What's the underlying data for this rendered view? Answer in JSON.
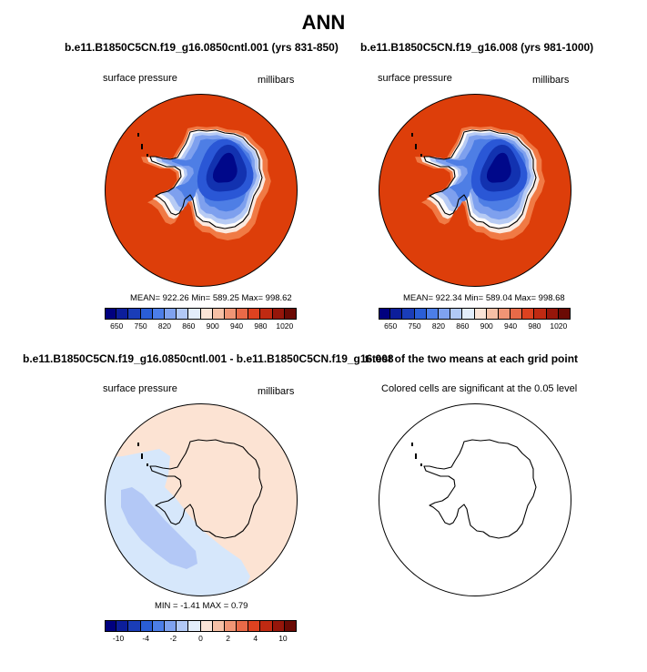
{
  "title": "ANN",
  "panels": [
    {
      "title": "b.e11.B1850C5CN.f19_g16.0850cntl.001 (yrs 831-850)",
      "left_label": "surface pressure",
      "right_label": "millibars",
      "stats": "MEAN= 922.26  Min= 589.25  Max= 998.62"
    },
    {
      "title": "b.e11.B1850C5CN.f19_g16.008 (yrs 981-1000)",
      "left_label": "surface pressure",
      "right_label": "millibars",
      "stats": "MEAN= 922.34  Min= 589.04  Max= 998.68"
    },
    {
      "title": "b.e11.B1850C5CN.f19_g16.0850cntl.001 - b.e11.B1850C5CN.f19_g16.008",
      "left_label": "surface pressure",
      "right_label": "millibars",
      "stats": "MIN =  -1.41 MAX =   0.79"
    },
    {
      "title": "t-test of the two means at each grid point",
      "subtitle": "Colored cells are significant at the 0.05 level"
    }
  ],
  "colorbar_abs": {
    "colors": [
      "#00007f",
      "#0c1e9b",
      "#1a3db8",
      "#2a5ed6",
      "#4c7ee8",
      "#7fa2ef",
      "#b2c9f6",
      "#e3edfb",
      "#fbe3d6",
      "#f7c0a6",
      "#f09575",
      "#e86a48",
      "#dd4220",
      "#c02a12",
      "#96160a",
      "#6b0a04"
    ],
    "tick_labels": [
      "650",
      "750",
      "820",
      "860",
      "900",
      "940",
      "980",
      "1020"
    ]
  },
  "colorbar_diff": {
    "colors": [
      "#00007f",
      "#0c1e9b",
      "#1a3db8",
      "#2a5ed6",
      "#4c7ee8",
      "#7fa2ef",
      "#b2c9f6",
      "#e3edfb",
      "#fbe3d6",
      "#f7c0a6",
      "#f09575",
      "#e86a48",
      "#dd4220",
      "#c02a12",
      "#96160a",
      "#6b0a04"
    ],
    "tick_labels": [
      "-10",
      "-4",
      "-2",
      "0",
      "2",
      "4",
      "10"
    ]
  },
  "map_colors": {
    "ocean_high": "#dd3e0a",
    "ring": "#f07a45",
    "coast_white": "#fbe9df",
    "coast_white2": "#fdfbfa",
    "l1": "#b7cbf4",
    "l2": "#7ea0ee",
    "l3": "#4e7ee5",
    "l4": "#2a57d6",
    "l5": "#1232b0",
    "l6": "#00088a",
    "diff_pos": "#fce3d3",
    "diff_neg1": "#d6e7fb",
    "diff_neg2": "#b3c8f6"
  }
}
